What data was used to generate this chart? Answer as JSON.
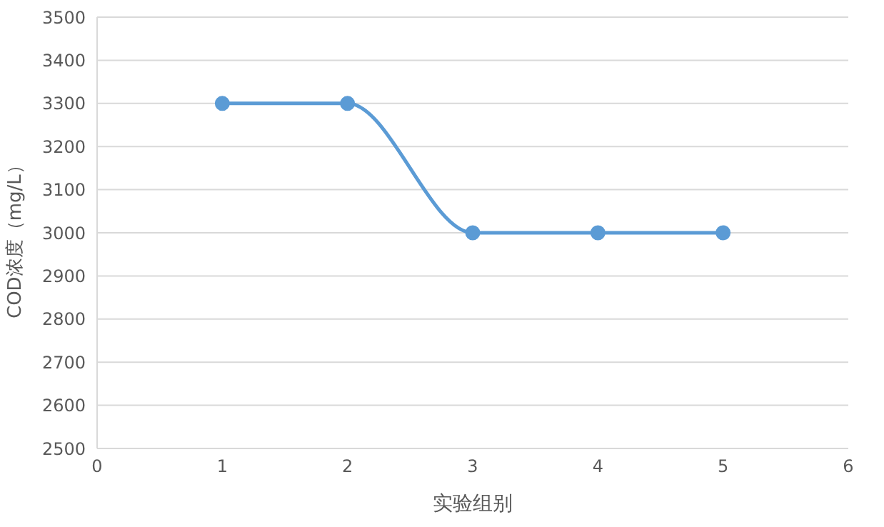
{
  "chart_data": {
    "type": "line",
    "xlabel": "实验组别",
    "ylabel": "COD浓度（mg/L）",
    "x": [
      1,
      2,
      3,
      4,
      5
    ],
    "series": [
      {
        "color": "#5b9bd5",
        "values": [
          3300,
          3300,
          3000,
          3000,
          3000
        ]
      }
    ],
    "xlim": [
      0,
      6
    ],
    "xticks": [
      0,
      1,
      2,
      3,
      4,
      5,
      6
    ],
    "ylim": [
      2500,
      3500
    ],
    "yticks": [
      2500,
      2600,
      2700,
      2800,
      2900,
      3000,
      3100,
      3200,
      3300,
      3400,
      3500
    ],
    "grid": "y",
    "marker": "circle",
    "line_style": "solid",
    "legend": false
  }
}
